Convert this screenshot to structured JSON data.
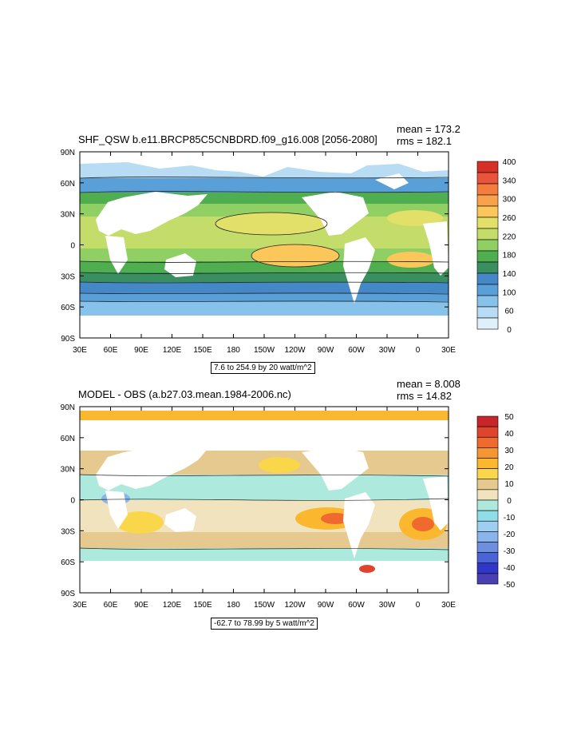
{
  "panels": [
    {
      "title": "SHF_QSW b.e11.BRCP85C5CNBDRD.f09_g16.008 [2056-2080]",
      "mean": "mean = 173.2",
      "rms": "rms = 182.1",
      "info": "7.6 to 254.9 by 20 watt/m^2",
      "colorbar": {
        "labels": [
          "400",
          "340",
          "300",
          "260",
          "220",
          "180",
          "140",
          "100",
          "60",
          "0"
        ],
        "colors": [
          "#d73027",
          "#e9553a",
          "#f47c3c",
          "#f9a24e",
          "#fbc65a",
          "#e3e06a",
          "#c4dc6a",
          "#8fcf64",
          "#4fae50",
          "#3a8f60",
          "#4588c8",
          "#5aa0d8",
          "#86c2ea",
          "#b7dcf4",
          "#dff0fb"
        ]
      }
    },
    {
      "title": "MODEL - OBS (a.b27.03.mean.1984-2006.nc)",
      "mean": "mean = 8.008",
      "rms": "rms = 14.82",
      "info": "-62.7 to 78.99 by 5 watt/m^2",
      "colorbar": {
        "labels": [
          "50",
          "40",
          "30",
          "20",
          "10",
          "0",
          "-10",
          "-20",
          "-30",
          "-40",
          "-50"
        ],
        "colors": [
          "#c8262a",
          "#e0442c",
          "#ee6a2e",
          "#f59631",
          "#fbb82e",
          "#f9d64a",
          "#e6c98e",
          "#f2e3bf",
          "#ade9dc",
          "#8fdde6",
          "#9fcff0",
          "#8ab5ea",
          "#6d8fe0",
          "#4a63d6",
          "#2f36c8",
          "#4a3fb0"
        ]
      }
    }
  ],
  "axes": {
    "lat_ticks": [
      "90N",
      "60N",
      "30N",
      "0",
      "30S",
      "60S",
      "90S"
    ],
    "lon_ticks": [
      "30E",
      "60E",
      "90E",
      "120E",
      "150E",
      "180",
      "150W",
      "120W",
      "90W",
      "60W",
      "30W",
      "0",
      "30E"
    ]
  }
}
